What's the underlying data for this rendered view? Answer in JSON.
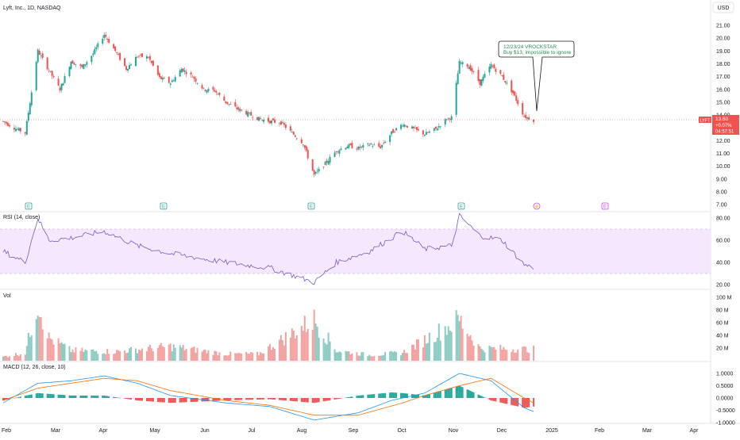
{
  "header": {
    "symbol_title": "Lyft, Inc., 1D, NASDAQ",
    "currency": "USD"
  },
  "price_tag": {
    "ticker": "LYFT",
    "price": "13.60",
    "change": "+0.07%",
    "countdown": "04:57:51"
  },
  "annotation": {
    "line1": "12/23/24 VROCKSTAR",
    "line2": "Buy $13, impossible to ignore"
  },
  "panes": {
    "rsi_label": "RSI (14, close)",
    "vol_label": "Vol",
    "macd_label": "MACD (12, 26, close, 10)"
  },
  "axes": {
    "price_ticks": [
      "21.00",
      "20.00",
      "19.00",
      "18.00",
      "17.00",
      "16.00",
      "15.00",
      "14.00",
      "13.00",
      "12.00",
      "11.00",
      "10.00",
      "9.00",
      "8.00",
      "7.00"
    ],
    "rsi_ticks": [
      "80.00",
      "60.00",
      "40.00",
      "20.00"
    ],
    "vol_ticks": [
      "100 M",
      "80 M",
      "60 M",
      "40 M",
      "20 M"
    ],
    "macd_ticks": [
      "1.0000",
      "0.5000",
      "0.0000",
      "-0.5000",
      "-1.0000"
    ],
    "time_ticks": [
      "Feb",
      "Mar",
      "Apr",
      "May",
      "Jun",
      "Jul",
      "Aug",
      "Sep",
      "Oct",
      "Nov",
      "Dec",
      "2025",
      "Feb",
      "Mar",
      "Apr"
    ]
  },
  "colors": {
    "up": "#26a69a",
    "down": "#ef5350",
    "up_vol": "#8bcbc4",
    "down_vol": "#f4a2a0",
    "rsi_line": "#7e57c2",
    "rsi_band": "#f3e8fd",
    "macd_line": "#2196f3",
    "signal_line": "#ff6d00",
    "annotation_text": "#2a8c57",
    "earnings_icon": "#26a69a",
    "dividend_icon": "#e040fb"
  },
  "chart_data": {
    "type": "candlestick",
    "series_name": "LYFT daily",
    "close_points": [
      [
        "2024-01-22",
        13.5
      ],
      [
        "2024-01-29",
        13.0
      ],
      [
        "2024-02-05",
        12.6
      ],
      [
        "2024-02-13",
        19.0
      ],
      [
        "2024-02-20",
        17.5
      ],
      [
        "2024-02-27",
        16.0
      ],
      [
        "2024-03-05",
        18.2
      ],
      [
        "2024-03-12",
        17.7
      ],
      [
        "2024-03-19",
        18.8
      ],
      [
        "2024-03-26",
        20.3
      ],
      [
        "2024-04-02",
        19.0
      ],
      [
        "2024-04-09",
        17.6
      ],
      [
        "2024-04-16",
        18.6
      ],
      [
        "2024-04-23",
        18.5
      ],
      [
        "2024-04-30",
        16.9
      ],
      [
        "2024-05-07",
        16.5
      ],
      [
        "2024-05-14",
        17.6
      ],
      [
        "2024-05-21",
        17.0
      ],
      [
        "2024-05-28",
        16.0
      ],
      [
        "2024-06-04",
        15.9
      ],
      [
        "2024-06-11",
        15.0
      ],
      [
        "2024-06-18",
        14.5
      ],
      [
        "2024-06-25",
        14.1
      ],
      [
        "2024-07-02",
        13.7
      ],
      [
        "2024-07-09",
        13.5
      ],
      [
        "2024-07-16",
        13.4
      ],
      [
        "2024-07-23",
        12.6
      ],
      [
        "2024-07-30",
        11.8
      ],
      [
        "2024-08-06",
        9.3
      ],
      [
        "2024-08-13",
        10.2
      ],
      [
        "2024-08-20",
        11.2
      ],
      [
        "2024-08-27",
        11.6
      ],
      [
        "2024-09-03",
        11.4
      ],
      [
        "2024-09-10",
        11.7
      ],
      [
        "2024-09-17",
        11.5
      ],
      [
        "2024-09-24",
        12.6
      ],
      [
        "2024-10-01",
        13.3
      ],
      [
        "2024-10-08",
        12.9
      ],
      [
        "2024-10-15",
        12.5
      ],
      [
        "2024-10-22",
        12.9
      ],
      [
        "2024-10-29",
        13.7
      ],
      [
        "2024-11-01",
        13.8
      ],
      [
        "2024-11-06",
        18.1
      ],
      [
        "2024-11-12",
        17.8
      ],
      [
        "2024-11-19",
        16.5
      ],
      [
        "2024-11-26",
        17.9
      ],
      [
        "2024-12-03",
        17.0
      ],
      [
        "2024-12-10",
        15.7
      ],
      [
        "2024-12-17",
        13.9
      ],
      [
        "2024-12-23",
        13.6
      ]
    ],
    "rsi": [
      [
        "2024-01-22",
        50
      ],
      [
        "2024-02-05",
        40
      ],
      [
        "2024-02-13",
        80
      ],
      [
        "2024-02-20",
        60
      ],
      [
        "2024-03-05",
        62
      ],
      [
        "2024-03-26",
        68
      ],
      [
        "2024-04-16",
        55
      ],
      [
        "2024-05-07",
        48
      ],
      [
        "2024-06-11",
        40
      ],
      [
        "2024-07-09",
        35
      ],
      [
        "2024-08-06",
        22
      ],
      [
        "2024-08-20",
        40
      ],
      [
        "2024-09-10",
        50
      ],
      [
        "2024-10-01",
        68
      ],
      [
        "2024-10-15",
        52
      ],
      [
        "2024-11-01",
        55
      ],
      [
        "2024-11-06",
        82
      ],
      [
        "2024-11-19",
        64
      ],
      [
        "2024-12-03",
        60
      ],
      [
        "2024-12-17",
        38
      ],
      [
        "2024-12-23",
        35
      ]
    ],
    "volume_m": [
      [
        "2024-01-22",
        7
      ],
      [
        "2024-02-05",
        14
      ],
      [
        "2024-02-13",
        106
      ],
      [
        "2024-02-20",
        40
      ],
      [
        "2024-03-05",
        18
      ],
      [
        "2024-04-02",
        16
      ],
      [
        "2024-05-07",
        25
      ],
      [
        "2024-06-11",
        12
      ],
      [
        "2024-07-02",
        12
      ],
      [
        "2024-08-06",
        72
      ],
      [
        "2024-08-20",
        18
      ],
      [
        "2024-09-10",
        10
      ],
      [
        "2024-10-01",
        14
      ],
      [
        "2024-11-06",
        72
      ],
      [
        "2024-11-19",
        22
      ],
      [
        "2024-12-23",
        20
      ]
    ],
    "macd": [
      [
        "2024-01-22",
        -0.2
      ],
      [
        "2024-02-13",
        0.6
      ],
      [
        "2024-03-05",
        0.7
      ],
      [
        "2024-03-26",
        0.9
      ],
      [
        "2024-04-16",
        0.6
      ],
      [
        "2024-05-07",
        0.1
      ],
      [
        "2024-06-11",
        -0.2
      ],
      [
        "2024-07-09",
        -0.35
      ],
      [
        "2024-08-06",
        -0.9
      ],
      [
        "2024-09-03",
        -0.6
      ],
      [
        "2024-09-24",
        -0.1
      ],
      [
        "2024-10-15",
        0.2
      ],
      [
        "2024-11-06",
        1.0
      ],
      [
        "2024-11-26",
        0.7
      ],
      [
        "2024-12-17",
        -0.4
      ],
      [
        "2024-12-23",
        -0.55
      ]
    ],
    "macd_signal": [
      [
        "2024-01-22",
        -0.1
      ],
      [
        "2024-02-13",
        0.4
      ],
      [
        "2024-03-26",
        0.8
      ],
      [
        "2024-04-16",
        0.7
      ],
      [
        "2024-05-07",
        0.3
      ],
      [
        "2024-06-11",
        -0.1
      ],
      [
        "2024-07-09",
        -0.3
      ],
      [
        "2024-08-06",
        -0.7
      ],
      [
        "2024-09-03",
        -0.7
      ],
      [
        "2024-10-01",
        -0.2
      ],
      [
        "2024-10-15",
        0.1
      ],
      [
        "2024-11-06",
        0.5
      ],
      [
        "2024-11-26",
        0.8
      ],
      [
        "2024-12-17",
        0.0
      ],
      [
        "2024-12-23",
        -0.2
      ]
    ],
    "price_ylim": [
      7,
      21
    ],
    "rsi_band": [
      30,
      70
    ],
    "grid": false
  }
}
